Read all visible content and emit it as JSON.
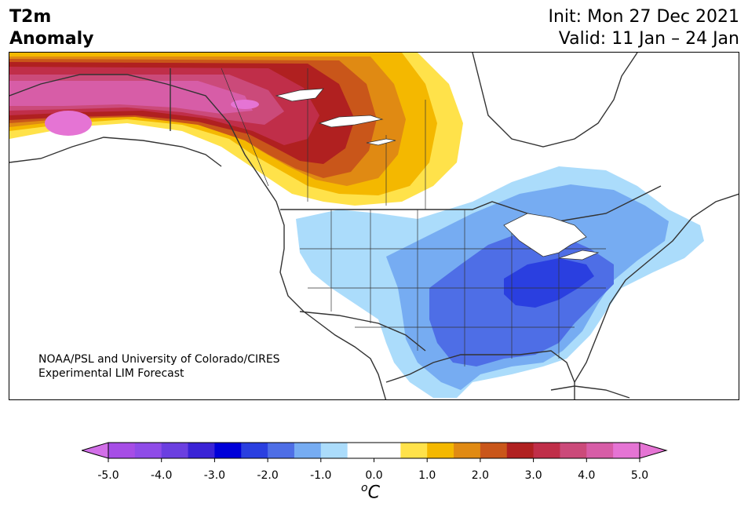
{
  "title": {
    "line1": "T2m",
    "line2": "Anomaly"
  },
  "init": "Init: Mon 27 Dec 2021",
  "valid": "Valid: 11 Jan – 24 Jan",
  "credit": {
    "line1": "NOAA/PSL and University of Colorado/CIRES",
    "line2": "Experimental LIM Forecast"
  },
  "colorbar": {
    "unit_base": "C",
    "unit_sup": "o",
    "tick_labels": [
      "-5.0",
      "-4.0",
      "-3.0",
      "-2.0",
      "-1.0",
      "0.0",
      "1.0",
      "2.0",
      "3.0",
      "4.0",
      "5.0"
    ],
    "bins": [
      {
        "min": -5.0,
        "max": -4.5,
        "color": "#a64de6"
      },
      {
        "min": -4.5,
        "max": -4.0,
        "color": "#8f4ce8"
      },
      {
        "min": -4.0,
        "max": -3.5,
        "color": "#6b3fe0"
      },
      {
        "min": -3.5,
        "max": -3.0,
        "color": "#3a23d6"
      },
      {
        "min": -3.0,
        "max": -2.5,
        "color": "#0000d9"
      },
      {
        "min": -2.5,
        "max": -2.0,
        "color": "#2a3fe0"
      },
      {
        "min": -2.0,
        "max": -1.5,
        "color": "#4e6ee6"
      },
      {
        "min": -1.5,
        "max": -1.0,
        "color": "#76acf2"
      },
      {
        "min": -1.0,
        "max": -0.5,
        "color": "#abdcfb"
      },
      {
        "min": -0.5,
        "max": 0.5,
        "color": "#ffffff"
      },
      {
        "min": 0.5,
        "max": 1.0,
        "color": "#ffe24a"
      },
      {
        "min": 1.0,
        "max": 1.5,
        "color": "#f4b800"
      },
      {
        "min": 1.5,
        "max": 2.0,
        "color": "#e08a13"
      },
      {
        "min": 2.0,
        "max": 2.5,
        "color": "#c9561a"
      },
      {
        "min": 2.5,
        "max": 3.0,
        "color": "#b02020"
      },
      {
        "min": 3.0,
        "max": 3.5,
        "color": "#c02e49"
      },
      {
        "min": 3.5,
        "max": 4.0,
        "color": "#cb4a7a"
      },
      {
        "min": 4.0,
        "max": 4.5,
        "color": "#d75da7"
      },
      {
        "min": 4.5,
        "max": 5.0,
        "color": "#e574d4"
      }
    ],
    "under_color": "#d26fe8",
    "over_color": "#e574d4"
  },
  "map_colors": {
    "land": "#ffffff",
    "coast": "#333333"
  }
}
